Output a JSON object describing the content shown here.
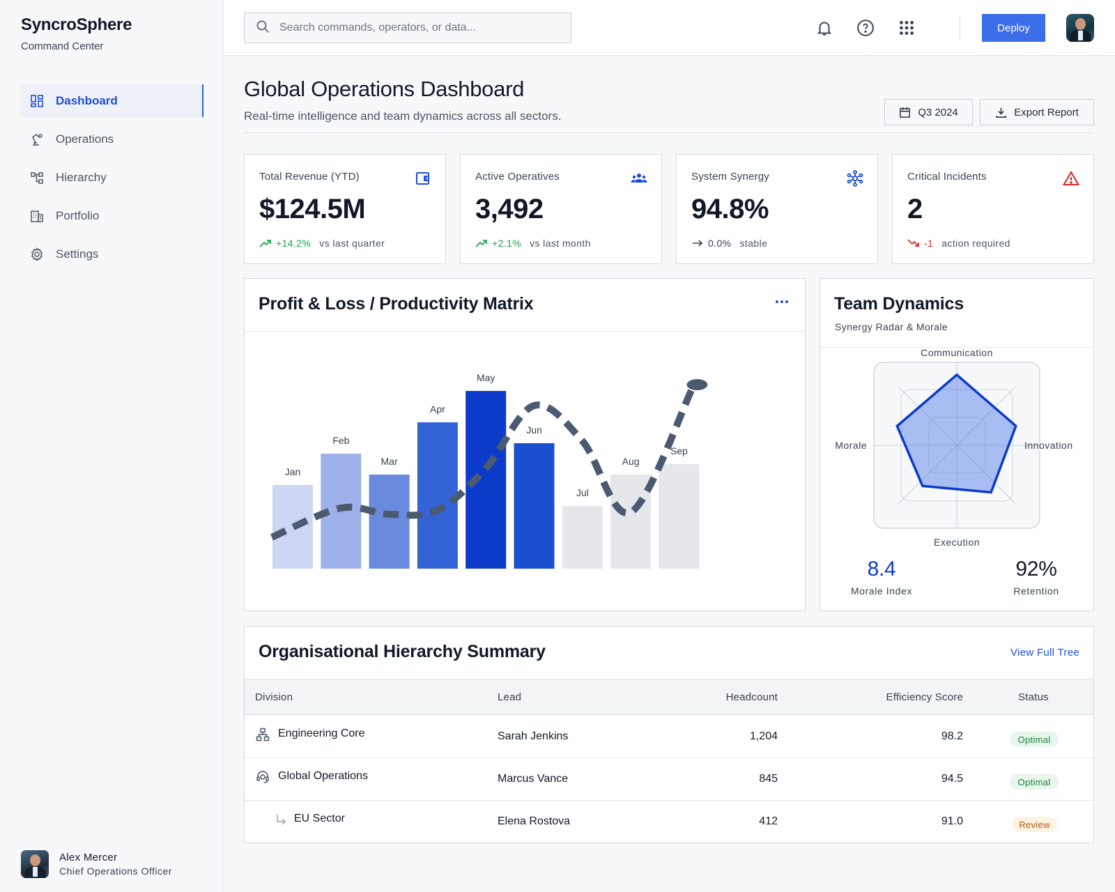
{
  "app": {
    "name": "SyncroSphere",
    "subtitle": "Command Center"
  },
  "sidebar": {
    "items": [
      {
        "label": "Dashboard",
        "icon": "dashboard-icon",
        "active": true
      },
      {
        "label": "Operations",
        "icon": "robot-arm-icon"
      },
      {
        "label": "Hierarchy",
        "icon": "hierarchy-icon"
      },
      {
        "label": "Portfolio",
        "icon": "building-icon"
      },
      {
        "label": "Settings",
        "icon": "gear-icon"
      }
    ]
  },
  "user": {
    "name": "Alex Mercer",
    "role": "Chief Operations Officer"
  },
  "topbar": {
    "search_placeholder": "Search commands, operators, or data...",
    "deploy_label": "Deploy"
  },
  "header": {
    "title": "Global Operations Dashboard",
    "subtitle": "Real-time intelligence and team dynamics across all sectors.",
    "period_label": "Q3 2024",
    "export_label": "Export Report"
  },
  "colors": {
    "accent": "#3b6ee8",
    "positive": "#16a34a",
    "negative": "#dc2626",
    "brand_blue": "#0b3bc8"
  },
  "kpis": [
    {
      "label": "Total Revenue (YTD)",
      "value": "$124.5M",
      "delta": "+14.2%",
      "note": "vs last quarter",
      "trend": "up",
      "icon": "wallet-icon"
    },
    {
      "label": "Active Operatives",
      "value": "3,492",
      "delta": "+2.1%",
      "note": "vs last month",
      "trend": "up",
      "icon": "users-icon"
    },
    {
      "label": "System Synergy",
      "value": "94.8%",
      "delta": "0.0%",
      "note": "stable",
      "trend": "flat",
      "icon": "network-icon"
    },
    {
      "label": "Critical Incidents",
      "value": "2",
      "delta": "-1",
      "note": "action required",
      "trend": "down",
      "icon": "alert-triangle-icon"
    }
  ],
  "pl_panel": {
    "title": "Profit & Loss / Productivity Matrix"
  },
  "chart_data": [
    {
      "type": "bar",
      "categories": [
        "Jan",
        "Feb",
        "Mar",
        "Apr",
        "May",
        "Jun",
        "Jul",
        "Aug",
        "Sep"
      ],
      "series": [
        {
          "values": [
            40,
            55,
            45,
            70,
            85,
            60,
            30,
            45,
            50
          ]
        }
      ],
      "bar_colors": [
        "#cdd6f2",
        "#9db1e8",
        "#6a8ade",
        "#3463d6",
        "#0b3bc8",
        "#1a4fd0",
        "#e5e7eb",
        "#e5e7eb",
        "#e5e7eb"
      ],
      "trend_line": [
        15,
        29,
        26,
        28,
        48,
        78,
        61,
        27,
        87
      ],
      "trend_color": "#4b5a71",
      "ylim": [
        0,
        100
      ],
      "title": ""
    },
    {
      "type": "radar",
      "title": "Team Dynamics",
      "subtitle": "Synergy Radar & Morale",
      "axes": [
        "Communication",
        "Innovation",
        "Execution",
        "Morale"
      ],
      "values": [
        0.85,
        0.75,
        0.7,
        0.8
      ],
      "fill_color": "#3b6ee8"
    }
  ],
  "team_metrics": [
    {
      "value": "8.4",
      "label": "Morale Index",
      "color": "#0b3bc8"
    },
    {
      "value": "92%",
      "label": "Retention",
      "color": "#111827"
    }
  ],
  "hierarchy": {
    "title": "Organisational Hierarchy Summary",
    "link_label": "View Full Tree",
    "columns": [
      "Division",
      "Lead",
      "Headcount",
      "Efficiency Score",
      "Status"
    ],
    "rows": [
      {
        "division": "Engineering Core",
        "lead": "Sarah Jenkins",
        "headcount": "1,204",
        "score": "98.2",
        "status": "Optimal",
        "icon": "sitemap-icon",
        "indent": false
      },
      {
        "division": "Global Operations",
        "lead": "Marcus Vance",
        "headcount": "845",
        "score": "94.5",
        "status": "Optimal",
        "icon": "support-agent-icon",
        "indent": false
      },
      {
        "division": "EU Sector",
        "lead": "Elena Rostova",
        "headcount": "412",
        "score": "91.0",
        "status": "Review",
        "icon": "subdirectory-arrow-icon",
        "indent": true
      }
    ]
  }
}
